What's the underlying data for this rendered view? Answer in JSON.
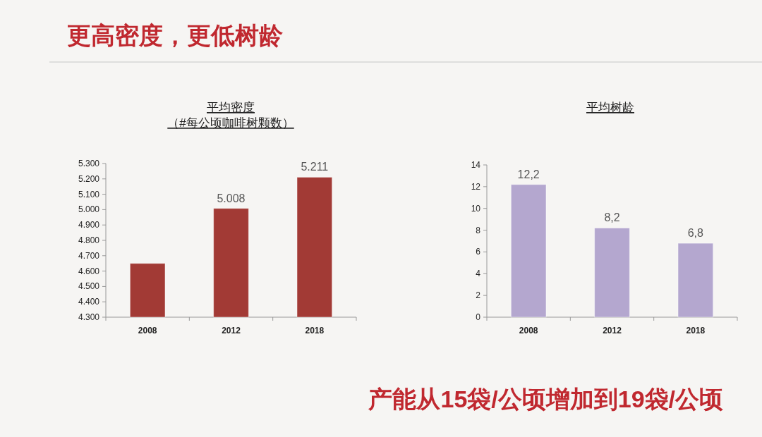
{
  "chart_data": [
    {
      "type": "other",
      "title": "更高密度，更低树龄",
      "annotations": [
        "产能从15袋/公顷增加到19袋/公顷"
      ]
    },
    {
      "type": "bar",
      "title": "平均密度",
      "subtitle": "（#每公顷咖啡树颗数）",
      "categories": [
        "2008",
        "2012",
        "2018"
      ],
      "values": [
        4650,
        5008,
        5211
      ],
      "value_labels": [
        null,
        "5.008",
        "5.211"
      ],
      "color": "#a23a35",
      "ylim": [
        4300,
        5300
      ],
      "yticks": [
        {
          "value": 4300,
          "label": "4.300"
        },
        {
          "value": 4400,
          "label": "4.400"
        },
        {
          "value": 4500,
          "label": "4.500"
        },
        {
          "value": 4600,
          "label": "4.600"
        },
        {
          "value": 4700,
          "label": "4.700"
        },
        {
          "value": 4800,
          "label": "4.800"
        },
        {
          "value": 4900,
          "label": "4.900"
        },
        {
          "value": 5000,
          "label": "5.000"
        },
        {
          "value": 5100,
          "label": "5.100"
        },
        {
          "value": 5200,
          "label": "5.200"
        },
        {
          "value": 5300,
          "label": "5.300"
        }
      ]
    },
    {
      "type": "bar",
      "title": "平均树龄",
      "categories": [
        "2008",
        "2012",
        "2018"
      ],
      "values": [
        12.2,
        8.2,
        6.8
      ],
      "value_labels": [
        "12,2",
        "8,2",
        "6,8"
      ],
      "color": "#b4a7cf",
      "ylim": [
        0,
        14
      ],
      "yticks": [
        0,
        2,
        4,
        6,
        8,
        10,
        12,
        14
      ]
    }
  ]
}
